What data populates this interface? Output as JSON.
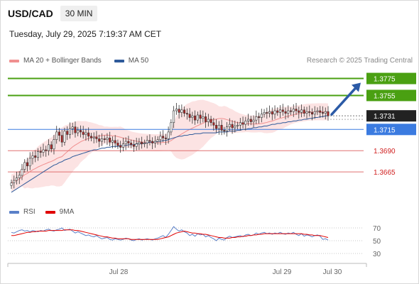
{
  "header": {
    "symbol": "USD/CAD",
    "timeframe": "30 MIN"
  },
  "timestamp": "Tuesday, July 29, 2025 7:19:37 AM CET",
  "legend": {
    "bb": {
      "label": "MA 20 + Bollinger Bands",
      "color": "#f08f8f"
    },
    "ma50": {
      "label": "MA 50",
      "color": "#2e5a9a"
    }
  },
  "credit": "Research © 2025 Trading Central",
  "rsi_legend": {
    "rsi": {
      "label": "RSI",
      "color": "#5a80c8"
    },
    "ma": {
      "label": "9MA",
      "color": "#e00000"
    }
  },
  "chart_data": [
    {
      "type": "candlestick",
      "ylim": [
        1.364,
        1.3788
      ],
      "current_price": {
        "label": "1.3731",
        "value": 1.3731
      },
      "levels": [
        {
          "label": "1.3775",
          "value": 1.3775,
          "kind": "resistance",
          "color": "#4aa012"
        },
        {
          "label": "1.3755",
          "value": 1.3755,
          "kind": "resistance",
          "color": "#4aa012"
        },
        {
          "label": "1.3715",
          "value": 1.3715,
          "kind": "pivot",
          "color": "#3b7be0"
        },
        {
          "label": "1.3690",
          "value": 1.369,
          "kind": "support",
          "color": "#e07070"
        },
        {
          "label": "1.3665",
          "value": 1.3665,
          "kind": "support",
          "color": "#e07070"
        }
      ],
      "x_ticks": [
        "Jul 28",
        "Jul 29",
        "Jul 30"
      ],
      "close": [
        1.3652,
        1.3655,
        1.3658,
        1.3661,
        1.3668,
        1.3676,
        1.3672,
        1.3681,
        1.3684,
        1.3682,
        1.3689,
        1.3688,
        1.3691,
        1.369,
        1.3697,
        1.3692,
        1.3703,
        1.3712,
        1.3708,
        1.37,
        1.3713,
        1.3709,
        1.3716,
        1.3718,
        1.3711,
        1.3714,
        1.3712,
        1.3709,
        1.3711,
        1.3707,
        1.3705,
        1.3706,
        1.3704,
        1.3701,
        1.3704,
        1.3703,
        1.3705,
        1.37,
        1.3702,
        1.3699,
        1.3696,
        1.3694,
        1.3698,
        1.3701,
        1.3699,
        1.3697,
        1.3695,
        1.3698,
        1.37,
        1.3698,
        1.3699,
        1.3702,
        1.3701,
        1.3699,
        1.3701,
        1.3703,
        1.3707,
        1.3705,
        1.3704,
        1.3712,
        1.3723,
        1.3737,
        1.3739,
        1.3735,
        1.3738,
        1.3734,
        1.3733,
        1.3729,
        1.3731,
        1.3726,
        1.3732,
        1.3728,
        1.373,
        1.3724,
        1.3727,
        1.3723,
        1.372,
        1.3716,
        1.372,
        1.3714,
        1.3713,
        1.3718,
        1.3721,
        1.3717,
        1.3719,
        1.372,
        1.3723,
        1.3721,
        1.3725,
        1.3727,
        1.3724,
        1.3726,
        1.373,
        1.3729,
        1.3733,
        1.3735,
        1.3734,
        1.3736,
        1.3733,
        1.3737,
        1.3735,
        1.3738,
        1.3736,
        1.3734,
        1.3737,
        1.3736,
        1.3739,
        1.3737,
        1.3735,
        1.3738,
        1.3734,
        1.3736,
        1.3735,
        1.3733,
        1.3736,
        1.3737,
        1.3735,
        1.3734,
        1.3736,
        1.3731
      ],
      "ma50": [
        1.3641,
        1.3643,
        1.3645,
        1.3647,
        1.3649,
        1.3651,
        1.3653,
        1.3655,
        1.3657,
        1.3659,
        1.3661,
        1.3663,
        1.3665,
        1.3667,
        1.3669,
        1.3671,
        1.3673,
        1.3674,
        1.3676,
        1.3677,
        1.3679,
        1.368,
        1.3681,
        1.3683,
        1.3684,
        1.3685,
        1.3686,
        1.3687,
        1.3688,
        1.3689,
        1.369,
        1.3691,
        1.3691,
        1.3692,
        1.3693,
        1.3693,
        1.3694,
        1.3694,
        1.3695,
        1.3695,
        1.3695,
        1.3696,
        1.3696,
        1.3696,
        1.3697,
        1.3697,
        1.3697,
        1.3698,
        1.3698,
        1.3698,
        1.3699,
        1.3699,
        1.37,
        1.37,
        1.37,
        1.3701,
        1.3701,
        1.3702,
        1.3702,
        1.3703,
        1.3704,
        1.3705,
        1.3706,
        1.3707,
        1.3707,
        1.3708,
        1.3708,
        1.3709,
        1.3709,
        1.371,
        1.371,
        1.371,
        1.3711,
        1.3711,
        1.3711,
        1.3711,
        1.3711,
        1.3711,
        1.3712,
        1.3712,
        1.3712,
        1.3712,
        1.3713,
        1.3713,
        1.3713,
        1.3714,
        1.3714,
        1.3715,
        1.3715,
        1.3716,
        1.3716,
        1.3717,
        1.3717,
        1.3718,
        1.3718,
        1.3719,
        1.3719,
        1.372,
        1.3721,
        1.3721,
        1.3722,
        1.3722,
        1.3723,
        1.3723,
        1.3724,
        1.3724,
        1.3725,
        1.3725,
        1.3726,
        1.3726,
        1.3727,
        1.3727,
        1.3728,
        1.3728,
        1.3729,
        1.3729,
        1.373,
        1.373,
        1.3731,
        1.3731
      ]
    },
    {
      "type": "line",
      "title": "RSI",
      "ylim": [
        20,
        80
      ],
      "y_ticks": [
        70,
        50,
        30
      ],
      "rsi": [
        63,
        62,
        64,
        66,
        67,
        65,
        66,
        64,
        66,
        65,
        64,
        66,
        65,
        67,
        68,
        66,
        65,
        67,
        68,
        70,
        66,
        67,
        68,
        65,
        62,
        64,
        62,
        60,
        58,
        59,
        57,
        56,
        58,
        55,
        53,
        54,
        55,
        52,
        51,
        53,
        52,
        51,
        52,
        54,
        53,
        51,
        50,
        52,
        53,
        51,
        52,
        53,
        52,
        51,
        53,
        54,
        56,
        58,
        55,
        60,
        66,
        72,
        68,
        65,
        67,
        64,
        62,
        58,
        60,
        57,
        61,
        59,
        60,
        56,
        58,
        55,
        53,
        50,
        54,
        52,
        51,
        55,
        57,
        55,
        56,
        57,
        58,
        56,
        59,
        60,
        58,
        59,
        62,
        60,
        62,
        63,
        61,
        62,
        60,
        62,
        61,
        63,
        61,
        60,
        62,
        61,
        63,
        60,
        58,
        61,
        57,
        59,
        58,
        56,
        58,
        59,
        57,
        52,
        53,
        51
      ],
      "rsi_ma": [
        58,
        58,
        59,
        60,
        61,
        62,
        63,
        63,
        64,
        64,
        65,
        65,
        65,
        65,
        66,
        66,
        66,
        66,
        66,
        66,
        67,
        67,
        67,
        67,
        66,
        66,
        65,
        64,
        63,
        62,
        61,
        60,
        59,
        58,
        57,
        56,
        56,
        55,
        54,
        54,
        53,
        53,
        53,
        53,
        53,
        52,
        52,
        52,
        52,
        52,
        52,
        52,
        52,
        52,
        52,
        52,
        53,
        54,
        55,
        56,
        58,
        60,
        62,
        63,
        64,
        65,
        64,
        63,
        62,
        62,
        61,
        61,
        60,
        60,
        59,
        58,
        57,
        56,
        55,
        55,
        54,
        54,
        54,
        55,
        55,
        56,
        56,
        57,
        57,
        58,
        58,
        59,
        59,
        60,
        60,
        61,
        61,
        61,
        61,
        61,
        61,
        61,
        61,
        61,
        61,
        61,
        61,
        61,
        61,
        61,
        60,
        60,
        59,
        59,
        58,
        58,
        58,
        57,
        56,
        55
      ]
    }
  ]
}
